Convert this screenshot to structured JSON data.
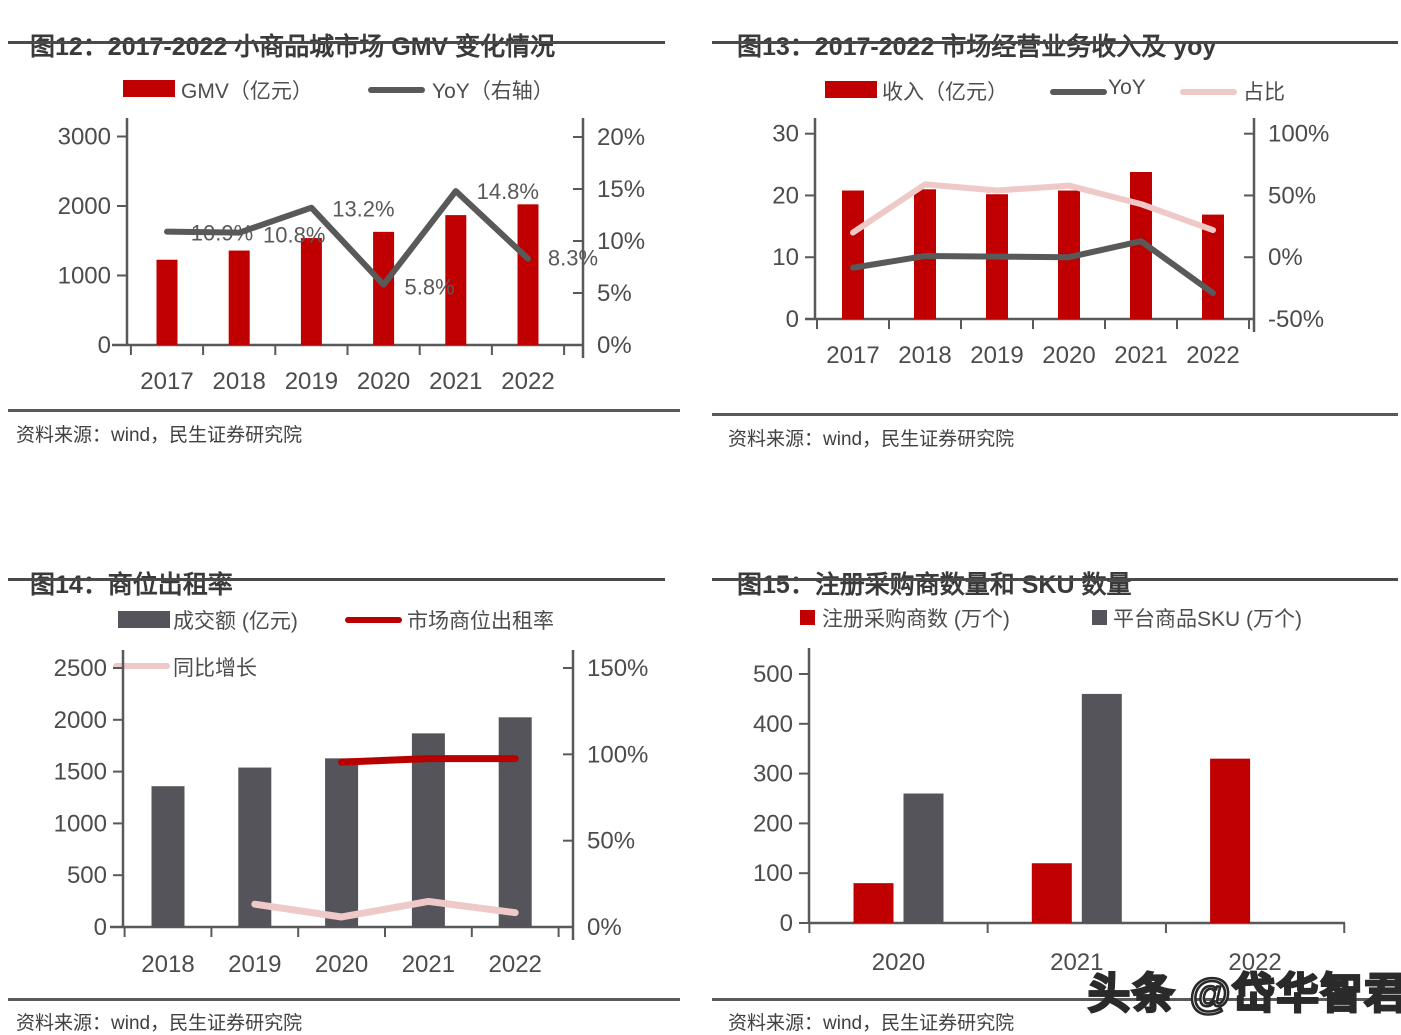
{
  "colors": {
    "bar_red": "#C00000",
    "bar_gray": "#54545A",
    "line_gray": "#595959",
    "line_dark_red": "#B80000",
    "line_pink": "#EFC9C7",
    "axis": "#595959",
    "tick_text": "#4c4c4c",
    "label_text": "#595959"
  },
  "watermark": {
    "text": "头条 @岱华智君"
  },
  "panels": [
    {
      "id": "fig12",
      "title": "图12：2017-2022 小商品城市场 GMV 变化情况",
      "source": "资料来源：wind，民生证券研究院",
      "legend": [
        {
          "type": "rect",
          "color_key": "bar_red",
          "label": "GMV（亿元）"
        },
        {
          "type": "line",
          "color_key": "line_gray",
          "label": "YoY（右轴）"
        }
      ]
    },
    {
      "id": "fig13",
      "title": "图13：2017-2022 市场经营业务收入及 yoy",
      "source": "资料来源：wind，民生证券研究院",
      "legend": [
        {
          "type": "rect",
          "color_key": "bar_red",
          "label": "收入（亿元）"
        },
        {
          "type": "line",
          "color_key": "line_gray",
          "label": "YoY"
        },
        {
          "type": "line",
          "color_key": "line_pink",
          "label": "占比"
        }
      ]
    },
    {
      "id": "fig14",
      "title": "图14：商位出租率",
      "source": "资料来源：wind，民生证券研究院",
      "legend": [
        {
          "type": "rect",
          "color_key": "bar_gray",
          "label": "成交额 (亿元)"
        },
        {
          "type": "line",
          "color_key": "line_dark_red",
          "label": "市场商位出租率"
        },
        {
          "type": "line",
          "color_key": "line_pink",
          "label": "同比增长"
        }
      ]
    },
    {
      "id": "fig15",
      "title": "图15：注册采购商数量和 SKU 数量",
      "source": "资料来源：wind，民生证券研究院",
      "legend": [
        {
          "type": "square",
          "color_key": "bar_red",
          "label": "注册采购商数 (万个)"
        },
        {
          "type": "square",
          "color_key": "bar_gray",
          "label": "平台商品SKU (万个)"
        }
      ]
    }
  ],
  "chart_data": [
    {
      "id": "fig12",
      "type": "bar",
      "title": "图12：2017-2022 小商品城市场 GMV 变化情况",
      "categories": [
        "2017",
        "2018",
        "2019",
        "2020",
        "2021",
        "2022"
      ],
      "series": [
        {
          "name": "GMV（亿元）",
          "type": "bar",
          "axis": "left",
          "color_key": "bar_red",
          "values": [
            1227,
            1359,
            1539,
            1628,
            1869,
            2024
          ]
        },
        {
          "name": "YoY（右轴）",
          "type": "line",
          "axis": "right",
          "color_key": "line_gray",
          "values": [
            10.9,
            10.8,
            13.2,
            5.8,
            14.8,
            8.3
          ],
          "labels": [
            "10.9%",
            "10.8%",
            "13.2%",
            "5.8%",
            "14.8%",
            "8.3%"
          ]
        }
      ],
      "left_axis": {
        "min": 0,
        "max": 3000,
        "ticks": [
          0,
          1000,
          2000,
          3000
        ],
        "labels": [
          "0",
          "1000",
          "2000",
          "3000"
        ]
      },
      "right_axis": {
        "min": 0,
        "max": 20,
        "ticks": [
          0,
          5,
          10,
          15,
          20
        ],
        "labels": [
          "0%",
          "5%",
          "10%",
          "15%",
          "20%"
        ]
      },
      "legend_position": "top",
      "grid": false
    },
    {
      "id": "fig13",
      "type": "bar",
      "title": "图13：2017-2022 市场经营业务收入及 yoy",
      "categories": [
        "2017",
        "2018",
        "2019",
        "2020",
        "2021",
        "2022"
      ],
      "series": [
        {
          "name": "收入（亿元）",
          "type": "bar",
          "axis": "left",
          "color_key": "bar_red",
          "values": [
            20.8,
            21.0,
            20.2,
            20.8,
            23.8,
            16.9
          ]
        },
        {
          "name": "YoY",
          "type": "line",
          "axis": "right",
          "color_key": "line_gray",
          "values": [
            -8.5,
            1,
            0.5,
            0,
            13,
            -29
          ]
        },
        {
          "name": "占比",
          "type": "line",
          "axis": "right",
          "color_key": "line_pink",
          "values": [
            20,
            59,
            54,
            58,
            43,
            22
          ]
        }
      ],
      "left_axis": {
        "min": 0,
        "max": 30,
        "ticks": [
          0,
          10,
          20,
          30
        ],
        "labels": [
          "0",
          "10",
          "20",
          "30"
        ]
      },
      "right_axis": {
        "min": -50,
        "max": 100,
        "ticks": [
          -50,
          0,
          50,
          100
        ],
        "labels": [
          "-50%",
          "0%",
          "50%",
          "100%"
        ]
      },
      "legend_position": "top",
      "grid": false
    },
    {
      "id": "fig14",
      "type": "bar",
      "title": "图14：商位出租率",
      "categories": [
        "2018",
        "2019",
        "2020",
        "2021",
        "2022"
      ],
      "series": [
        {
          "name": "成交额 (亿元)",
          "type": "bar",
          "axis": "left",
          "color_key": "bar_gray",
          "values": [
            1359,
            1539,
            1628,
            1869,
            2024
          ]
        },
        {
          "name": "市场商位出租率",
          "type": "line",
          "axis": "right",
          "color_key": "line_dark_red",
          "values": [
            null,
            null,
            95.5,
            97.5,
            97.5
          ]
        },
        {
          "name": "同比增长",
          "type": "line",
          "axis": "right",
          "color_key": "line_pink",
          "values": [
            null,
            13.2,
            5.8,
            14.8,
            8.3
          ]
        }
      ],
      "left_axis": {
        "min": 0,
        "max": 2500,
        "ticks": [
          0,
          500,
          1000,
          1500,
          2000,
          2500
        ],
        "labels": [
          "0",
          "500",
          "1000",
          "1500",
          "2000",
          "2500"
        ]
      },
      "right_axis": {
        "min": 0,
        "max": 150,
        "ticks": [
          0,
          50,
          100,
          150
        ],
        "labels": [
          "0%",
          "50%",
          "100%",
          "150%"
        ]
      },
      "legend_position": "top",
      "grid": false
    },
    {
      "id": "fig15",
      "type": "bar",
      "title": "图15：注册采购商数量和 SKU 数量",
      "categories": [
        "2020",
        "2021",
        "2022"
      ],
      "series": [
        {
          "name": "注册采购商数 (万个)",
          "type": "bar",
          "axis": "left",
          "color_key": "bar_red",
          "values": [
            80,
            120,
            330
          ]
        },
        {
          "name": "平台商品SKU (万个)",
          "type": "bar",
          "axis": "left",
          "color_key": "bar_gray",
          "values": [
            260,
            460,
            null
          ]
        }
      ],
      "left_axis": {
        "min": 0,
        "max": 500,
        "ticks": [
          0,
          100,
          200,
          300,
          400,
          500
        ],
        "labels": [
          "0",
          "100",
          "200",
          "300",
          "400",
          "500"
        ]
      },
      "legend_position": "top",
      "grid": false
    }
  ]
}
